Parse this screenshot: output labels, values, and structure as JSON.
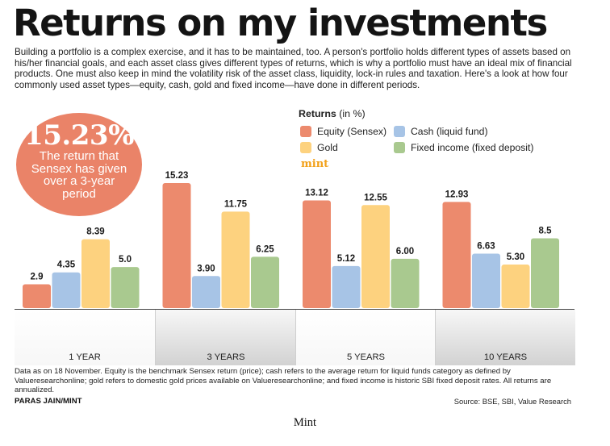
{
  "title": "Returns on my investments",
  "intro": "Building a portfolio is a complex exercise, and it has to be maintained, too. A person's portfolio holds different types of assets based on his/her financial goals, and each asset class gives different types of returns, which is why a portfolio must have an ideal mix of financial products. One must also keep in mind the volatility risk of the asset class, liquidity, lock-in rules and taxation. Here's a look at how four commonly used asset types—equity, cash, gold and fixed income—have done in different periods.",
  "badge": {
    "value": "15.23%",
    "text": "The return that Sensex has given over a 3-year period"
  },
  "legend": {
    "title": "Returns",
    "unit": "(in %)"
  },
  "brand": "mint",
  "footnote": "Data as on 18 November. Equity is the benchmark Sensex return (price); cash refers to the average return for liquid funds category as defined by Valueresearchonline; gold refers to domestic gold prices available on Valueresearchonline; and fixed income is historic SBI fixed deposit rates. All returns are annualized.",
  "credit": "PARAS JAIN/MINT",
  "source": "Source: BSE, SBI, Value Research",
  "caption": "Mint",
  "colors": {
    "equity": "#ec8a6d",
    "cash": "#a7c4e6",
    "gold": "#fdd27f",
    "fixed": "#a9c98f"
  },
  "chart_data": {
    "type": "bar",
    "categories": [
      "1 YEAR",
      "3 YEARS",
      "5 YEARS",
      "10 YEARS"
    ],
    "series": [
      {
        "name": "Equity (Sensex)",
        "key": "equity",
        "values": [
          2.9,
          15.23,
          13.12,
          12.93
        ],
        "labels": [
          "2.9",
          "15.23",
          "13.12",
          "12.93"
        ]
      },
      {
        "name": "Cash (liquid fund)",
        "key": "cash",
        "values": [
          4.35,
          3.9,
          5.12,
          6.63
        ],
        "labels": [
          "4.35",
          "3.90",
          "5.12",
          "6.63"
        ]
      },
      {
        "name": "Gold",
        "key": "gold",
        "values": [
          8.39,
          11.75,
          12.55,
          5.3
        ],
        "labels": [
          "8.39",
          "11.75",
          "12.55",
          "5.30"
        ]
      },
      {
        "name": "Fixed income (fixed deposit)",
        "key": "fixed",
        "values": [
          5.0,
          6.25,
          6.0,
          8.5
        ],
        "labels": [
          "5.0",
          "6.25",
          "6.00",
          "8.5"
        ]
      }
    ],
    "ylabel": "Returns (in %)",
    "ylim": [
      0,
      15.23
    ],
    "grid": false,
    "legend_position": "top-right"
  }
}
